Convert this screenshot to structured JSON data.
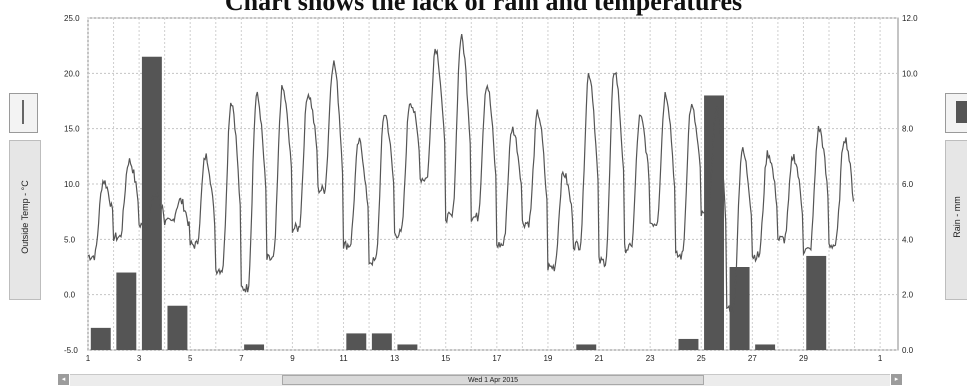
{
  "chart_data": {
    "type": "bar+line",
    "title": "Chart shows the lack of rain and temperatures",
    "y_left_label": "Outside Temp - °C",
    "y_right_label": "Rain - mm",
    "y_left_ticks": [
      "25.0",
      "20.0",
      "15.0",
      "10.0",
      "5.0",
      "0.0",
      "-5.0"
    ],
    "y_right_ticks": [
      "12.0",
      "10.0",
      "8.0",
      "6.0",
      "4.0",
      "2.0",
      "0.0"
    ],
    "ylim_left": [
      -5,
      25
    ],
    "ylim_right": [
      0,
      12
    ],
    "x_tick_labels": [
      "1",
      "3",
      "5",
      "7",
      "9",
      "11",
      "13",
      "15",
      "17",
      "19",
      "21",
      "23",
      "25",
      "27",
      "29",
      "1"
    ],
    "xlim_days": [
      1,
      32.7
    ],
    "x_axis_caption": "Wed 1 Apr 2015",
    "grid": true,
    "rain_series": {
      "name": "Rain - mm",
      "color": "#555555",
      "days": [
        1,
        2,
        3,
        4,
        7,
        11,
        12,
        13,
        20,
        24,
        25,
        26,
        27,
        29
      ],
      "values": [
        0.8,
        2.8,
        10.6,
        1.6,
        0.2,
        0.6,
        0.6,
        0.2,
        0.2,
        0.4,
        9.2,
        3.0,
        0.2,
        3.4
      ]
    },
    "temp_series": {
      "name": "Outside Temp - °C",
      "color": "#555555",
      "day_max": [
        10.3,
        12.1,
        9.0,
        8.5,
        12.5,
        17.5,
        18.0,
        18.6,
        18.2,
        21.0,
        13.8,
        16.4,
        17.5,
        22.3,
        23.2,
        19.0,
        15.0,
        16.4,
        11.0,
        20.0,
        20.3,
        16.0,
        18.2,
        17.0,
        16.8,
        13.0,
        12.8,
        12.5,
        15.0,
        14.2
      ],
      "day_min": [
        3.5,
        5.2,
        6.2,
        6.5,
        4.5,
        2.3,
        0.6,
        3.2,
        6.0,
        9.5,
        4.5,
        3.0,
        5.5,
        10.5,
        7.0,
        7.0,
        4.5,
        6.5,
        2.5,
        4.5,
        3.0,
        4.2,
        6.5,
        3.5,
        7.2,
        -1.2,
        3.5,
        5.0,
        4.0,
        4.5
      ]
    }
  },
  "left_panel": {
    "button_icon": "single-line-icon"
  },
  "right_panel": {
    "button_icon": "bar-legend-icon"
  },
  "nav": {
    "left_arrow": "◂",
    "right_arrow": "▸"
  }
}
